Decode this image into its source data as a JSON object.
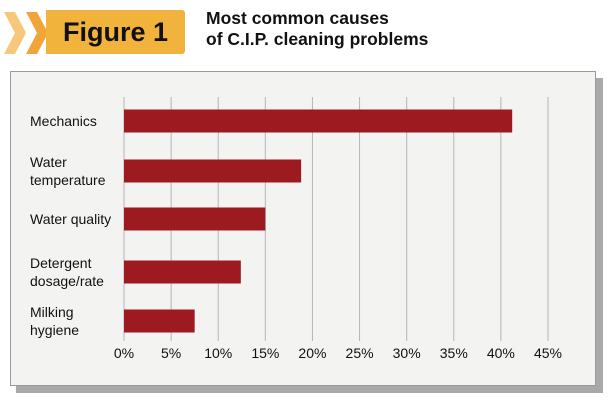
{
  "header": {
    "badge": "Figure 1",
    "title_lines": [
      "Most common causes",
      "of C.I.P. cleaning problems"
    ]
  },
  "colors": {
    "bar": "#9e1a21",
    "badge": "#f2b33d",
    "chevron_light": "#f7c77a",
    "chevron_dark": "#f0a53a",
    "panel": "#f3f3f2",
    "grid": "#b5b5b5"
  },
  "chart_data": {
    "type": "bar",
    "orientation": "horizontal",
    "title": "Most common causes of C.I.P. cleaning problems",
    "categories": [
      [
        "Mechanics"
      ],
      [
        "Water",
        "temperature"
      ],
      [
        "Water quality"
      ],
      [
        "Detergent",
        "dosage/rate"
      ],
      [
        "Milking",
        "hygiene"
      ]
    ],
    "values": [
      41.2,
      18.8,
      15.0,
      12.4,
      7.5
    ],
    "xlim": [
      0,
      45
    ],
    "x_ticks": [
      "0%",
      "5%",
      "10%",
      "15%",
      "20%",
      "25%",
      "30%",
      "35%",
      "40%",
      "45%"
    ],
    "grid": "vertical",
    "xlabel": "",
    "ylabel": ""
  }
}
